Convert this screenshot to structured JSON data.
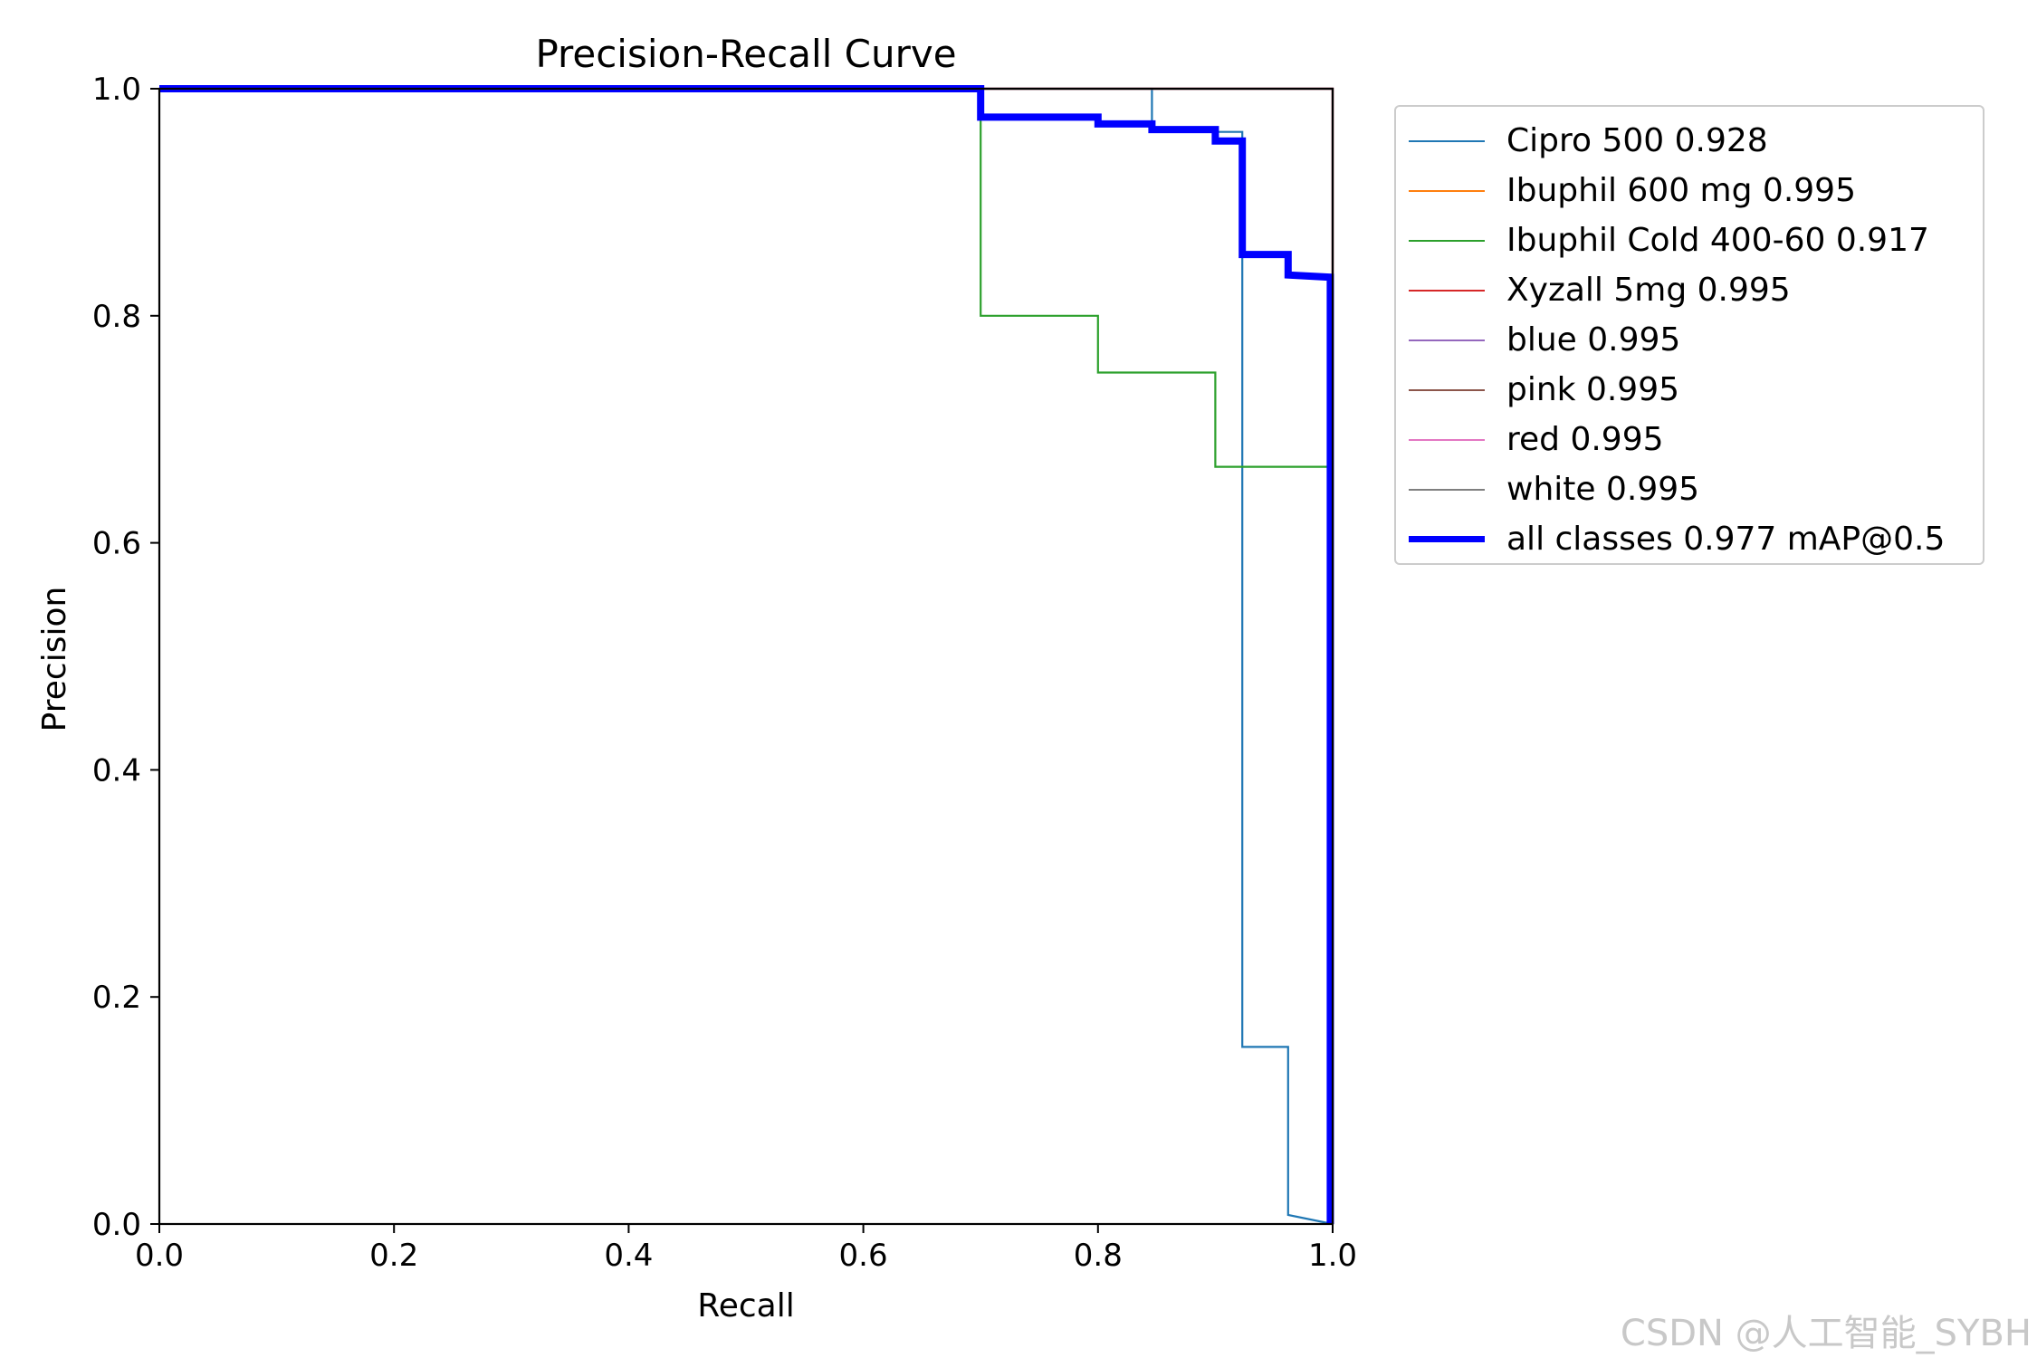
{
  "chart_data": {
    "type": "line",
    "title": "Precision-Recall Curve",
    "xlabel": "Recall",
    "ylabel": "Precision",
    "xlim": [
      0,
      1
    ],
    "ylim": [
      0,
      1
    ],
    "xticks": [
      "0.0",
      "0.2",
      "0.4",
      "0.6",
      "0.8",
      "1.0"
    ],
    "yticks": [
      "0.0",
      "0.2",
      "0.4",
      "0.6",
      "0.8",
      "1.0"
    ],
    "grid": false,
    "legend_position": "outside-right",
    "series": [
      {
        "name": "Cipro 500 0.928",
        "color": "#1f77b4",
        "width": 2.2,
        "points": [
          [
            0,
            1
          ],
          [
            0.846,
            1
          ],
          [
            0.846,
            0.962
          ],
          [
            0.923,
            0.962
          ],
          [
            0.923,
            0.156
          ],
          [
            0.962,
            0.156
          ],
          [
            0.962,
            0.008
          ],
          [
            1.0,
            0.0
          ]
        ]
      },
      {
        "name": "Ibuphil 600 mg 0.995",
        "color": "#ff7f0e",
        "width": 2.2,
        "points": [
          [
            0,
            1
          ],
          [
            1,
            1
          ],
          [
            1,
            0
          ]
        ]
      },
      {
        "name": "Ibuphil Cold 400-60 0.917",
        "color": "#2ca02c",
        "width": 2.2,
        "points": [
          [
            0,
            1
          ],
          [
            0.7,
            1
          ],
          [
            0.7,
            0.8
          ],
          [
            0.8,
            0.8
          ],
          [
            0.8,
            0.75
          ],
          [
            0.9,
            0.75
          ],
          [
            0.9,
            0.667
          ],
          [
            1.0,
            0.667
          ],
          [
            1.0,
            0.0
          ]
        ]
      },
      {
        "name": "Xyzall 5mg 0.995",
        "color": "#d62728",
        "width": 2.2,
        "points": [
          [
            0,
            1
          ],
          [
            1,
            1
          ],
          [
            1,
            0
          ]
        ]
      },
      {
        "name": "blue 0.995",
        "color": "#9467bd",
        "width": 2.2,
        "points": [
          [
            0,
            1
          ],
          [
            1,
            1
          ],
          [
            1,
            0
          ]
        ]
      },
      {
        "name": "pink 0.995",
        "color": "#8c564b",
        "width": 2.2,
        "points": [
          [
            0,
            1
          ],
          [
            1,
            1
          ],
          [
            1,
            0
          ]
        ]
      },
      {
        "name": "red 0.995",
        "color": "#e377c2",
        "width": 2.2,
        "points": [
          [
            0,
            1
          ],
          [
            1,
            1
          ],
          [
            1,
            0
          ]
        ]
      },
      {
        "name": "white 0.995",
        "color": "#7f7f7f",
        "width": 2.2,
        "points": [
          [
            0,
            1
          ],
          [
            1,
            1
          ],
          [
            1,
            0
          ]
        ]
      },
      {
        "name": "all classes 0.977 mAP@0.5",
        "color": "#0000ff",
        "width": 8,
        "points": [
          [
            0,
            1
          ],
          [
            0.7,
            1
          ],
          [
            0.7,
            0.975
          ],
          [
            0.8,
            0.975
          ],
          [
            0.8,
            0.969
          ],
          [
            0.846,
            0.969
          ],
          [
            0.846,
            0.964
          ],
          [
            0.9,
            0.964
          ],
          [
            0.9,
            0.954
          ],
          [
            0.923,
            0.954
          ],
          [
            0.923,
            0.854
          ],
          [
            0.962,
            0.854
          ],
          [
            0.962,
            0.836
          ],
          [
            0.998,
            0.834
          ],
          [
            0.998,
            0.0
          ]
        ]
      }
    ]
  },
  "watermark": "CSDN @人工智能_SYBH"
}
